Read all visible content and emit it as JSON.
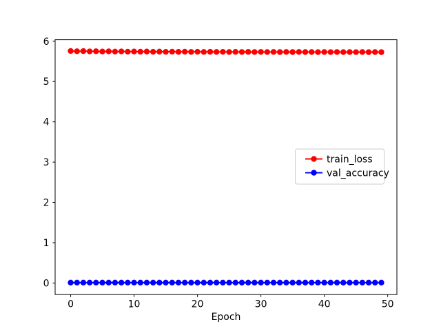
{
  "figure": {
    "background": "#ffffff",
    "frame_color": "#000000",
    "legend": {
      "position": "center-right",
      "border_color": "#cccccc",
      "background": "#ffffff",
      "entries": [
        {
          "label": "train_loss",
          "color": "#ff0000",
          "marker": "circle"
        },
        {
          "label": "val_accuracy",
          "color": "#0000ff",
          "marker": "circle"
        }
      ]
    }
  },
  "chart_data": {
    "type": "line",
    "title": "",
    "xlabel": "Epoch",
    "ylabel": "",
    "grid": false,
    "legend_position": "center-right",
    "xlim": [
      -2.45,
      51.45
    ],
    "ylim": [
      -0.2875,
      6.0375
    ],
    "xticks": [
      0,
      10,
      20,
      30,
      40,
      50
    ],
    "yticks": [
      0,
      1,
      2,
      3,
      4,
      5,
      6
    ],
    "x": [
      0,
      1,
      2,
      3,
      4,
      5,
      6,
      7,
      8,
      9,
      10,
      11,
      12,
      13,
      14,
      15,
      16,
      17,
      18,
      19,
      20,
      21,
      22,
      23,
      24,
      25,
      26,
      27,
      28,
      29,
      30,
      31,
      32,
      33,
      34,
      35,
      36,
      37,
      38,
      39,
      40,
      41,
      42,
      43,
      44,
      45,
      46,
      47,
      48,
      49
    ],
    "series": [
      {
        "name": "train_loss",
        "color": "#ff0000",
        "marker": "circle",
        "values": [
          5.758,
          5.752,
          5.755,
          5.748,
          5.751,
          5.745,
          5.749,
          5.743,
          5.747,
          5.741,
          5.745,
          5.74,
          5.744,
          5.738,
          5.742,
          5.737,
          5.741,
          5.736,
          5.74,
          5.735,
          5.739,
          5.734,
          5.738,
          5.734,
          5.737,
          5.733,
          5.736,
          5.733,
          5.736,
          5.732,
          5.735,
          5.732,
          5.735,
          5.731,
          5.734,
          5.731,
          5.734,
          5.731,
          5.733,
          5.73,
          5.733,
          5.73,
          5.733,
          5.73,
          5.732,
          5.73,
          5.732,
          5.729,
          5.731,
          5.729
        ]
      },
      {
        "name": "val_accuracy",
        "color": "#0000ff",
        "marker": "circle",
        "values": [
          0.01,
          0.01,
          0.01,
          0.01,
          0.01,
          0.01,
          0.01,
          0.01,
          0.01,
          0.01,
          0.01,
          0.01,
          0.01,
          0.01,
          0.01,
          0.01,
          0.01,
          0.01,
          0.01,
          0.01,
          0.01,
          0.01,
          0.01,
          0.01,
          0.01,
          0.01,
          0.01,
          0.01,
          0.01,
          0.01,
          0.01,
          0.01,
          0.01,
          0.01,
          0.01,
          0.01,
          0.01,
          0.01,
          0.01,
          0.01,
          0.01,
          0.01,
          0.01,
          0.01,
          0.01,
          0.01,
          0.01,
          0.01,
          0.01,
          0.01
        ]
      }
    ]
  }
}
